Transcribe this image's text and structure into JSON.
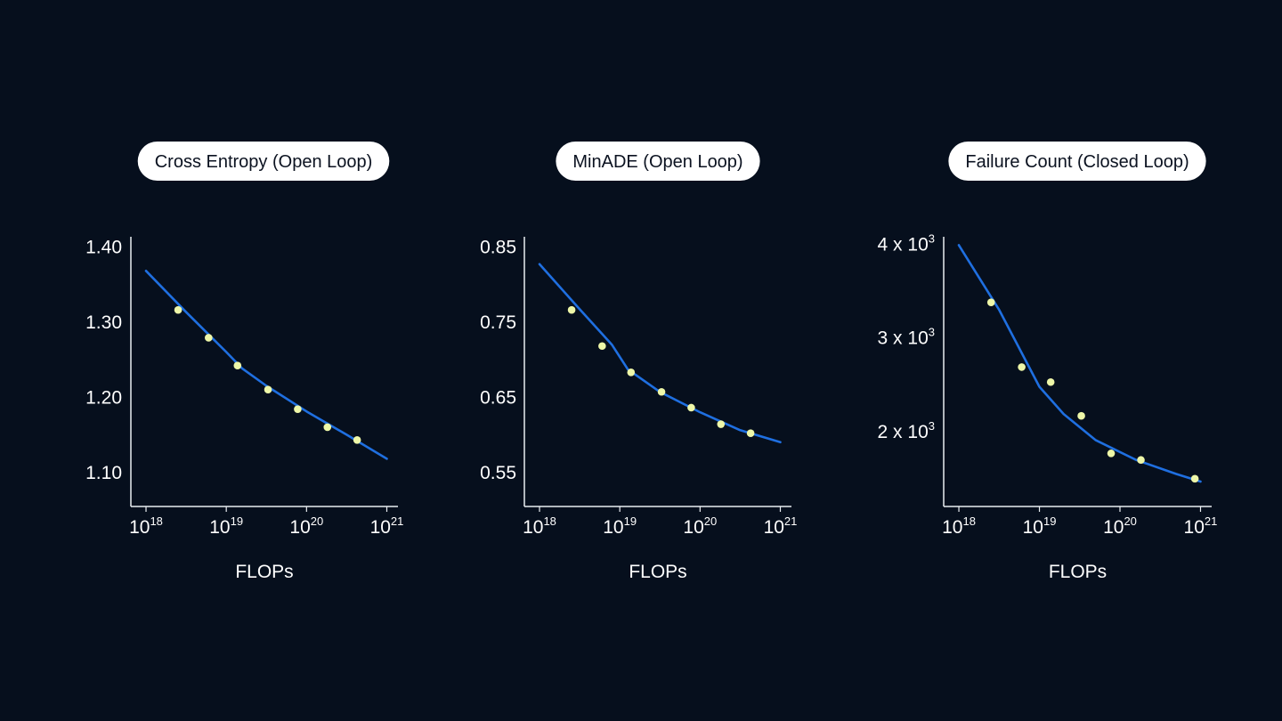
{
  "colors": {
    "background": "#060f1d",
    "pill_bg": "#ffffff",
    "pill_text": "#0b1220",
    "axis": "#e9edf2",
    "text": "#ffffff",
    "fit_line": "#1f6fe0",
    "points": "#eef7a8"
  },
  "chart_data": [
    {
      "type": "scatter",
      "title": "Cross Entropy (Open Loop)",
      "xlabel": "FLOPs",
      "ylabel": "",
      "xscale": "log",
      "x_ticks": [
        {
          "exp": 18,
          "label": "10",
          "sup": "18"
        },
        {
          "exp": 19,
          "label": "10",
          "sup": "19"
        },
        {
          "exp": 20,
          "label": "10",
          "sup": "20"
        },
        {
          "exp": 21,
          "label": "10",
          "sup": "21"
        }
      ],
      "y_ticks": [
        {
          "value": 1.4,
          "label": "1.40"
        },
        {
          "value": 1.3,
          "label": "1.30"
        },
        {
          "value": 1.2,
          "label": "1.20"
        },
        {
          "value": 1.1,
          "label": "1.10"
        }
      ],
      "xlim": [
        17.9,
        21.05
      ],
      "ylim": [
        1.063,
        1.41
      ],
      "points": [
        {
          "exp": 18.4,
          "y": 1.315
        },
        {
          "exp": 18.78,
          "y": 1.278
        },
        {
          "exp": 19.14,
          "y": 1.241
        },
        {
          "exp": 19.52,
          "y": 1.209
        },
        {
          "exp": 19.89,
          "y": 1.183
        },
        {
          "exp": 20.26,
          "y": 1.159
        },
        {
          "exp": 20.63,
          "y": 1.142
        }
      ],
      "fit": [
        {
          "exp": 18.0,
          "y": 1.367
        },
        {
          "exp": 18.5,
          "y": 1.312
        },
        {
          "exp": 19.0,
          "y": 1.259
        },
        {
          "exp": 19.2,
          "y": 1.237
        },
        {
          "exp": 19.5,
          "y": 1.214
        },
        {
          "exp": 20.0,
          "y": 1.18
        },
        {
          "exp": 20.5,
          "y": 1.149
        },
        {
          "exp": 21.0,
          "y": 1.117
        }
      ]
    },
    {
      "type": "scatter",
      "title": "MinADE (Open Loop)",
      "xlabel": "FLOPs",
      "ylabel": "",
      "xscale": "log",
      "x_ticks": [
        {
          "exp": 18,
          "label": "10",
          "sup": "18"
        },
        {
          "exp": 19,
          "label": "10",
          "sup": "19"
        },
        {
          "exp": 20,
          "label": "10",
          "sup": "20"
        },
        {
          "exp": 21,
          "label": "10",
          "sup": "21"
        }
      ],
      "y_ticks": [
        {
          "value": 0.85,
          "label": "0.85"
        },
        {
          "value": 0.75,
          "label": "0.75"
        },
        {
          "value": 0.65,
          "label": "0.65"
        },
        {
          "value": 0.55,
          "label": "0.55"
        }
      ],
      "xlim": [
        17.9,
        21.05
      ],
      "ylim": [
        0.513,
        0.86
      ],
      "points": [
        {
          "exp": 18.4,
          "y": 0.765
        },
        {
          "exp": 18.78,
          "y": 0.717
        },
        {
          "exp": 19.14,
          "y": 0.682
        },
        {
          "exp": 19.52,
          "y": 0.656
        },
        {
          "exp": 19.89,
          "y": 0.635
        },
        {
          "exp": 20.26,
          "y": 0.613
        },
        {
          "exp": 20.63,
          "y": 0.601
        }
      ],
      "fit": [
        {
          "exp": 18.0,
          "y": 0.826
        },
        {
          "exp": 18.5,
          "y": 0.766
        },
        {
          "exp": 18.9,
          "y": 0.719
        },
        {
          "exp": 19.1,
          "y": 0.686
        },
        {
          "exp": 19.5,
          "y": 0.656
        },
        {
          "exp": 20.0,
          "y": 0.629
        },
        {
          "exp": 20.5,
          "y": 0.605
        },
        {
          "exp": 21.0,
          "y": 0.589
        }
      ]
    },
    {
      "type": "scatter",
      "title": "Failure Count (Closed Loop)",
      "xlabel": "FLOPs",
      "ylabel": "",
      "xscale": "log",
      "x_ticks": [
        {
          "exp": 18,
          "label": "10",
          "sup": "18"
        },
        {
          "exp": 19,
          "label": "10",
          "sup": "19"
        },
        {
          "exp": 20,
          "label": "10",
          "sup": "20"
        },
        {
          "exp": 21,
          "label": "10",
          "sup": "21"
        }
      ],
      "y_ticks": [
        {
          "value": 4000,
          "label": "4 x 10",
          "sup": "3"
        },
        {
          "value": 3000,
          "label": "3 x 10",
          "sup": "3"
        },
        {
          "value": 2000,
          "label": "2 x 10",
          "sup": "3"
        }
      ],
      "xlim": [
        17.9,
        21.05
      ],
      "ylim": [
        1270,
        4050
      ],
      "points": [
        {
          "exp": 18.4,
          "y": 3370
        },
        {
          "exp": 18.78,
          "y": 2680
        },
        {
          "exp": 19.14,
          "y": 2520
        },
        {
          "exp": 19.52,
          "y": 2160
        },
        {
          "exp": 19.89,
          "y": 1760
        },
        {
          "exp": 20.26,
          "y": 1690
        },
        {
          "exp": 20.93,
          "y": 1490
        }
      ],
      "fit": [
        {
          "exp": 18.0,
          "y": 3980
        },
        {
          "exp": 18.5,
          "y": 3290
        },
        {
          "exp": 19.0,
          "y": 2470
        },
        {
          "exp": 19.3,
          "y": 2180
        },
        {
          "exp": 19.7,
          "y": 1900
        },
        {
          "exp": 20.2,
          "y": 1690
        },
        {
          "exp": 20.7,
          "y": 1540
        },
        {
          "exp": 21.0,
          "y": 1460
        }
      ]
    }
  ]
}
